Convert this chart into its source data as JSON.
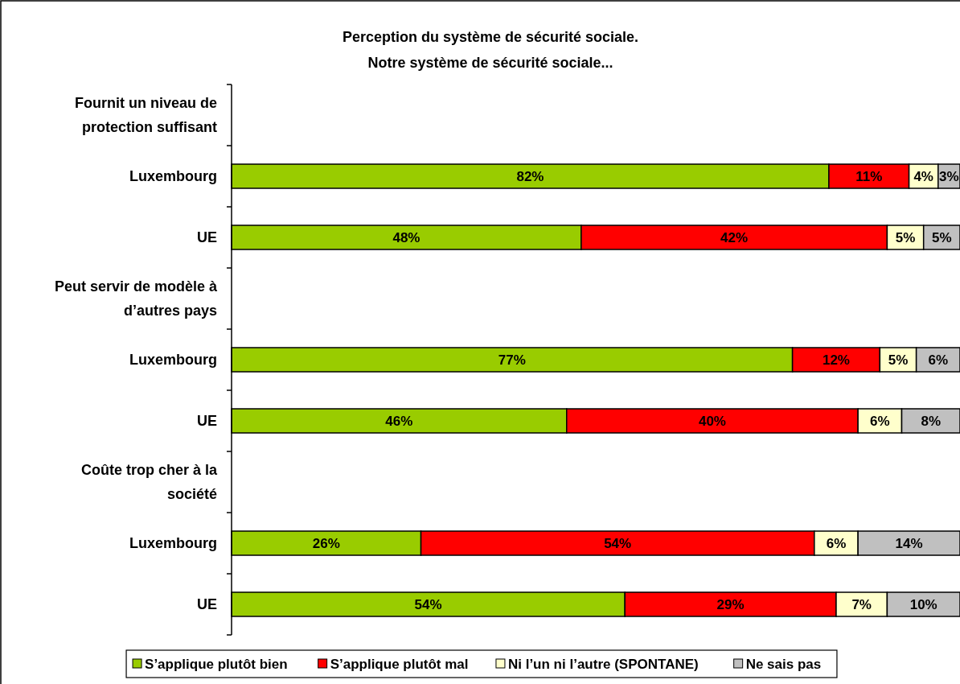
{
  "chart_data": {
    "type": "bar",
    "orientation": "horizontal",
    "stacked": true,
    "title": "Perception du système de sécurité sociale.",
    "subtitle": "Notre système de sécurité sociale...",
    "categories": [
      "Fournit un niveau de protection suffisant",
      "Luxembourg",
      "UE",
      "Peut servir de modèle à d’autres pays",
      "Luxembourg",
      "UE",
      "Coûte trop cher à la société",
      "Luxembourg",
      "UE"
    ],
    "series": [
      {
        "name": "S’applique plutôt bien",
        "color": "#99cc00",
        "values": [
          null,
          82,
          48,
          null,
          77,
          46,
          null,
          26,
          54
        ],
        "value_labels": [
          null,
          "82%",
          "48%",
          null,
          "77%",
          "46%",
          null,
          "26%",
          "54%"
        ]
      },
      {
        "name": "S’applique plutôt mal",
        "color": "#ff0000",
        "values": [
          null,
          11,
          42,
          null,
          12,
          40,
          null,
          54,
          29
        ],
        "value_labels": [
          null,
          "11%",
          "42%",
          null,
          "12%",
          "40%",
          null,
          "54%",
          "29%"
        ]
      },
      {
        "name": "Ni l’un ni l’autre (SPONTANE)",
        "color": "#ffffcc",
        "values": [
          null,
          4,
          5,
          null,
          5,
          6,
          null,
          6,
          7
        ],
        "value_labels": [
          null,
          "4%",
          "5%",
          null,
          "5%",
          "6%",
          null,
          "6%",
          "7%"
        ]
      },
      {
        "name": "Ne sais pas",
        "color": "#c0c0c0",
        "values": [
          null,
          3,
          5,
          null,
          6,
          8,
          null,
          14,
          10
        ],
        "value_labels": [
          null,
          "3%",
          "5%",
          null,
          "6%",
          "8%",
          null,
          "14%",
          "10%"
        ]
      }
    ],
    "legend": "bottom",
    "tick_labels": "y"
  }
}
